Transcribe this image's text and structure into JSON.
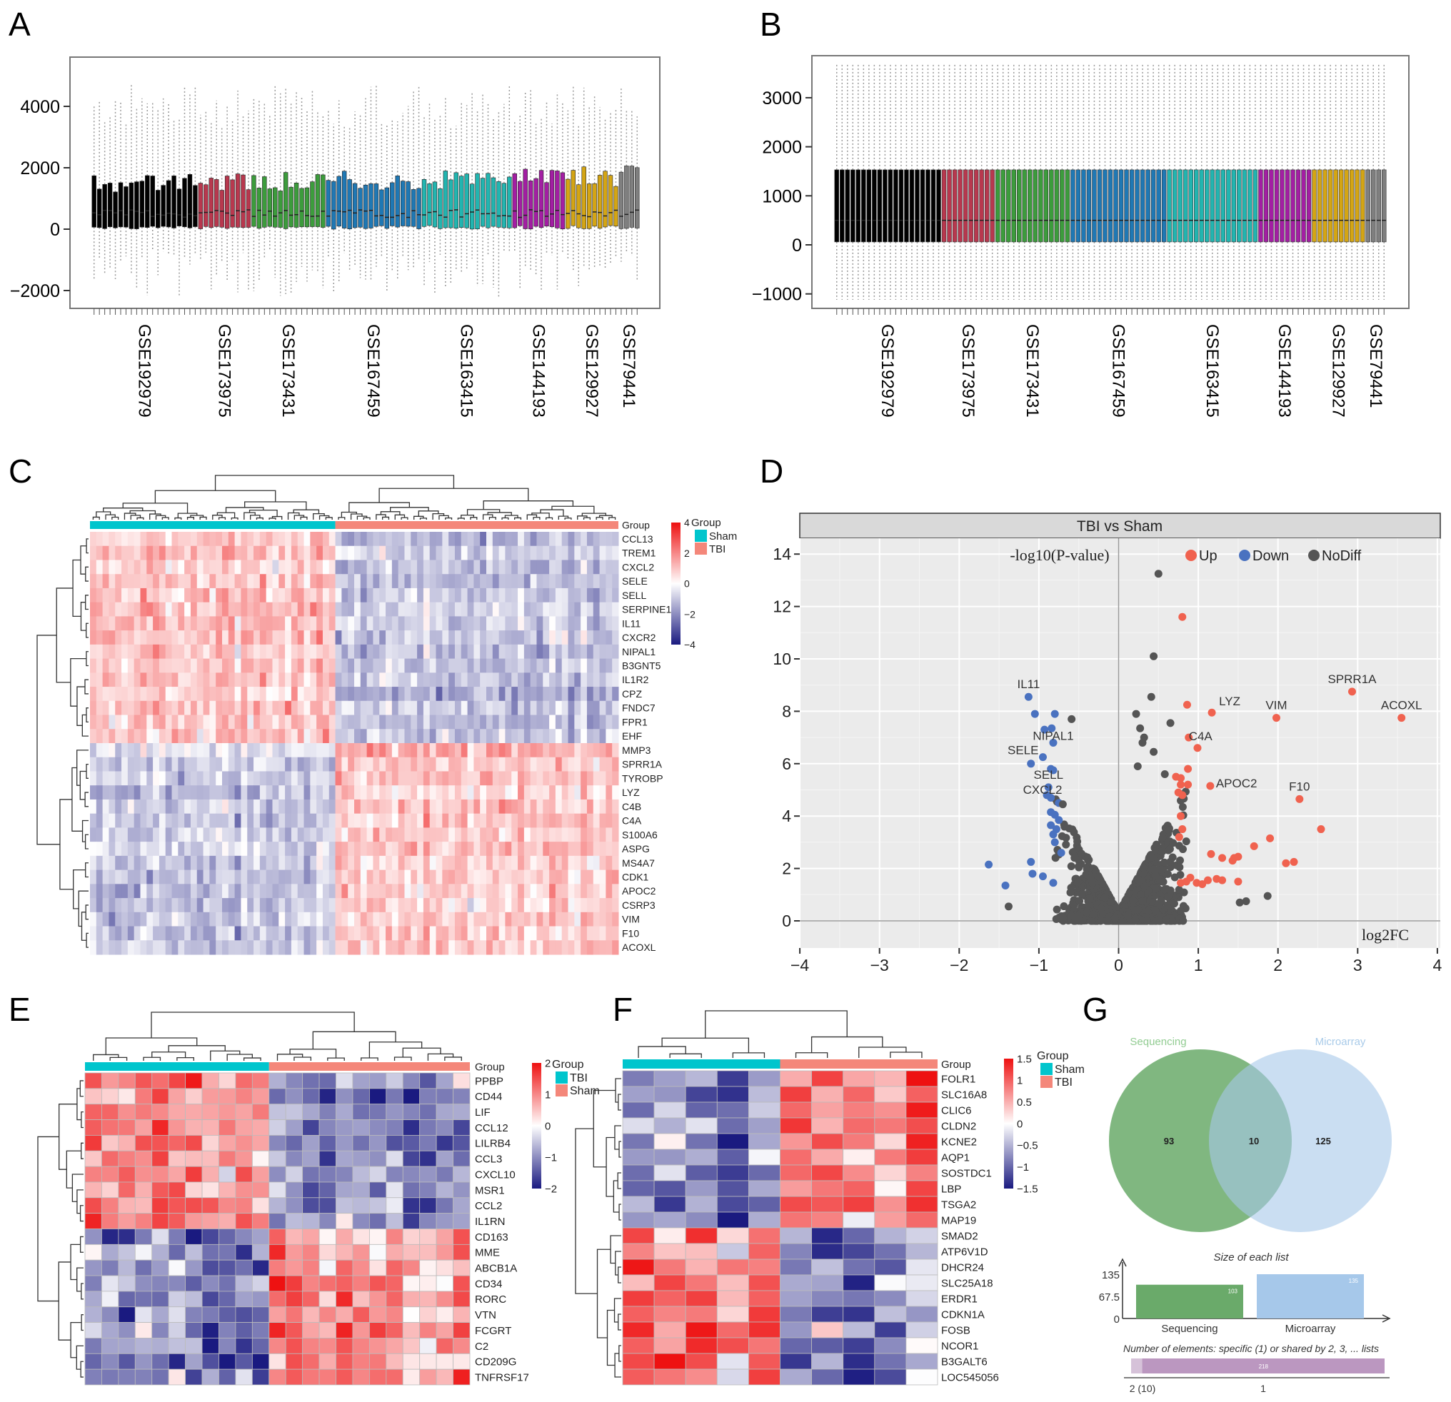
{
  "panel_labels": [
    "A",
    "B",
    "C",
    "D",
    "E",
    "F",
    "G"
  ],
  "chart_data": [
    {
      "panel": "A",
      "type": "box",
      "yticks": [
        4000,
        2000,
        0,
        -2000
      ],
      "ytick_labels": [
        "4000",
        "2000",
        "0",
        "−2000"
      ],
      "ylim": [
        -2400,
        5200
      ],
      "datasets": [
        {
          "name": "GSE192979",
          "color": "#000000",
          "n": 20
        },
        {
          "name": "GSE173975",
          "color": "#b8384e",
          "n": 10
        },
        {
          "name": "GSE173431",
          "color": "#3c9c3c",
          "n": 14
        },
        {
          "name": "GSE167459",
          "color": "#1f78b4",
          "n": 18
        },
        {
          "name": "GSE163415",
          "color": "#22b5b0",
          "n": 17
        },
        {
          "name": "GSE144193",
          "color": "#a31ea3",
          "n": 10
        },
        {
          "name": "GSE129927",
          "color": "#d4a514",
          "n": 10
        },
        {
          "name": "GSE79441",
          "color": "#7f7f7f",
          "n": 4
        }
      ]
    },
    {
      "panel": "B",
      "type": "box",
      "yticks": [
        3000,
        2000,
        1000,
        0,
        -1000
      ],
      "ytick_labels": [
        "3000",
        "2000",
        "1000",
        "0",
        "−1000"
      ],
      "ylim": [
        -1300,
        3900
      ],
      "datasets": [
        {
          "name": "GSE192979",
          "color": "#000000",
          "n": 20
        },
        {
          "name": "GSE173975",
          "color": "#b8384e",
          "n": 10
        },
        {
          "name": "GSE173431",
          "color": "#3c9c3c",
          "n": 14
        },
        {
          "name": "GSE167459",
          "color": "#1f78b4",
          "n": 18
        },
        {
          "name": "GSE163415",
          "color": "#22b5b0",
          "n": 17
        },
        {
          "name": "GSE144193",
          "color": "#a31ea3",
          "n": 10
        },
        {
          "name": "GSE129927",
          "color": "#d4a514",
          "n": 10
        },
        {
          "name": "GSE79441",
          "color": "#7f7f7f",
          "n": 4
        }
      ]
    },
    {
      "panel": "C",
      "type": "heatmap",
      "annotation_label": "Group",
      "legend_title": "Group",
      "groups": [
        {
          "name": "Sham",
          "color": "#00c5cd",
          "n": 39
        },
        {
          "name": "TBI",
          "color": "#f4877a",
          "n": 45
        }
      ],
      "colorbar": {
        "range": [
          -4,
          4
        ],
        "ticks": [
          4,
          2,
          0,
          -2,
          -4
        ],
        "tick_labels": [
          "4",
          "2",
          "0",
          "−2",
          "−4"
        ],
        "low": "#1a1a80",
        "mid": "#ffffff",
        "high": "#ee1111"
      },
      "genes": [
        "CCL13",
        "TREM1",
        "CXCL2",
        "SELE",
        "SELL",
        "SERPINE1",
        "IL11",
        "CXCR2",
        "NIPAL1",
        "B3GNT5",
        "IL1R2",
        "CPZ",
        "FNDC7",
        "FPR1",
        "EHF",
        "MMP3",
        "SPRR1A",
        "TYROBP",
        "LYZ",
        "C4B",
        "C4A",
        "S100A6",
        "ASPG",
        "MS4A7",
        "CDK1",
        "APOC2",
        "CSRP3",
        "VIM",
        "F10",
        "ACOXL"
      ],
      "high_in": [
        "Sham",
        "Sham",
        "Sham",
        "Sham",
        "Sham",
        "Sham",
        "Sham",
        "Sham",
        "Sham",
        "Sham",
        "Sham",
        "Sham",
        "Sham",
        "Sham",
        "Sham",
        "TBI",
        "TBI",
        "TBI",
        "TBI",
        "TBI",
        "TBI",
        "TBI",
        "TBI",
        "TBI",
        "TBI",
        "TBI",
        "TBI",
        "TBI",
        "TBI",
        "TBI"
      ]
    },
    {
      "panel": "D",
      "type": "scatter",
      "title": "TBI vs Sham",
      "xlabel": "log2FC",
      "ylabel": "-log10(P-value)",
      "xlim": [
        -4,
        4
      ],
      "ylim": [
        -1,
        14.8
      ],
      "xticks": [
        -4,
        -3,
        -2,
        -1,
        0,
        1,
        2,
        3,
        4
      ],
      "xtick_labels": [
        "−4",
        "−3",
        "−2",
        "−1",
        "0",
        "1",
        "2",
        "3",
        "4"
      ],
      "yticks": [
        0,
        2,
        4,
        6,
        8,
        10,
        12,
        14
      ],
      "ytick_labels": [
        "0",
        "2",
        "4",
        "6",
        "8",
        "10",
        "12",
        "14"
      ],
      "grid": true,
      "legend_placement": "top",
      "series": [
        {
          "name": "Up",
          "color": "#f0624f",
          "points": [
            [
              0.8,
              11.6
            ],
            [
              0.86,
              8.25
            ],
            [
              1.17,
              7.95
            ],
            [
              1.98,
              7.75
            ],
            [
              2.93,
              8.75
            ],
            [
              3.55,
              7.75
            ],
            [
              0.88,
              7.0
            ],
            [
              0.99,
              6.6
            ],
            [
              0.87,
              5.8
            ],
            [
              0.72,
              5.5
            ],
            [
              0.78,
              5.45
            ],
            [
              0.78,
              5.2
            ],
            [
              0.87,
              5.2
            ],
            [
              1.15,
              5.15
            ],
            [
              0.75,
              4.9
            ],
            [
              0.8,
              4.8
            ],
            [
              2.27,
              4.65
            ],
            [
              0.78,
              4.0
            ],
            [
              0.8,
              3.5
            ],
            [
              0.76,
              3.2
            ],
            [
              2.54,
              3.5
            ],
            [
              1.9,
              3.15
            ],
            [
              1.7,
              2.85
            ],
            [
              1.16,
              2.55
            ],
            [
              1.3,
              2.4
            ],
            [
              1.45,
              2.4
            ],
            [
              1.5,
              2.45
            ],
            [
              1.43,
              2.3
            ],
            [
              2.1,
              2.2
            ],
            [
              2.2,
              2.25
            ],
            [
              0.9,
              1.65
            ],
            [
              0.78,
              1.45
            ],
            [
              0.98,
              1.45
            ],
            [
              1.05,
              1.4
            ],
            [
              1.12,
              1.55
            ],
            [
              1.23,
              1.6
            ],
            [
              1.3,
              1.55
            ],
            [
              1.5,
              1.5
            ],
            [
              0.85,
              1.5
            ]
          ]
        },
        {
          "name": "Down",
          "color": "#4a72c0",
          "points": [
            [
              -1.13,
              8.55
            ],
            [
              -1.05,
              7.9
            ],
            [
              -0.8,
              7.9
            ],
            [
              -0.93,
              7.3
            ],
            [
              -0.84,
              7.35
            ],
            [
              -0.82,
              6.8
            ],
            [
              -0.95,
              6.25
            ],
            [
              -1.1,
              6.0
            ],
            [
              -0.85,
              5.8
            ],
            [
              -0.82,
              5.75
            ],
            [
              -0.88,
              5.1
            ],
            [
              -0.9,
              4.8
            ],
            [
              -0.85,
              4.7
            ],
            [
              -0.75,
              4.5
            ],
            [
              -0.85,
              4.15
            ],
            [
              -0.8,
              4.05
            ],
            [
              -0.75,
              3.85
            ],
            [
              -0.85,
              3.65
            ],
            [
              -0.78,
              3.5
            ],
            [
              -0.82,
              3.3
            ],
            [
              -0.8,
              3.0
            ],
            [
              -0.72,
              2.6
            ],
            [
              -1.1,
              2.25
            ],
            [
              -1.63,
              2.15
            ],
            [
              -1.08,
              1.8
            ],
            [
              -0.95,
              1.7
            ],
            [
              -0.82,
              1.45
            ],
            [
              -1.42,
              1.35
            ]
          ]
        },
        {
          "name": "NoDiff",
          "color": "#555555",
          "points": [
            [
              0.5,
              13.25
            ],
            [
              0.44,
              10.1
            ],
            [
              0.41,
              8.55
            ],
            [
              0.22,
              7.9
            ],
            [
              0.65,
              7.55
            ],
            [
              -0.59,
              7.7
            ],
            [
              0.27,
              7.35
            ],
            [
              0.32,
              7.0
            ],
            [
              0.3,
              6.8
            ],
            [
              0.44,
              6.45
            ],
            [
              0.24,
              5.9
            ],
            [
              0.58,
              5.6
            ],
            [
              1.87,
              0.95
            ],
            [
              1.6,
              0.75
            ],
            [
              1.52,
              0.7
            ],
            [
              -1.38,
              0.55
            ],
            [
              -0.7,
              4.45
            ]
          ]
        }
      ],
      "annotations": [
        {
          "label": "SPRR1A",
          "x": 2.93,
          "y": 8.75
        },
        {
          "label": "ACOXL",
          "x": 3.55,
          "y": 7.75
        },
        {
          "label": "VIM",
          "x": 1.98,
          "y": 7.75
        },
        {
          "label": "LYZ",
          "x": 1.17,
          "y": 7.95
        },
        {
          "label": "C4A",
          "x": 0.88,
          "y": 7.0
        },
        {
          "label": "APOC2",
          "x": 1.15,
          "y": 5.15
        },
        {
          "label": "F10",
          "x": 2.27,
          "y": 4.65
        },
        {
          "label": "IL11",
          "x": -1.13,
          "y": 8.55
        },
        {
          "label": "NIPAL1",
          "x": -0.82,
          "y": 6.8
        },
        {
          "label": "SELE",
          "x": -0.95,
          "y": 6.25
        },
        {
          "label": "SELL",
          "x": -0.88,
          "y": 5.1
        },
        {
          "label": "CXCL2",
          "x": -0.9,
          "y": 4.8
        }
      ]
    },
    {
      "panel": "E",
      "type": "heatmap",
      "annotation_label": "Group",
      "legend_title": "Group",
      "groups": [
        {
          "name": "TBI",
          "color": "#00c5cd",
          "n": 11
        },
        {
          "name": "Sham",
          "color": "#f4877a",
          "n": 12
        }
      ],
      "colorbar": {
        "range": [
          -2,
          2
        ],
        "ticks": [
          2,
          1,
          0,
          -1,
          -2
        ],
        "tick_labels": [
          "2",
          "1",
          "0",
          "−1",
          "−2"
        ],
        "low": "#1a1a80",
        "mid": "#ffffff",
        "high": "#ee1111"
      },
      "genes": [
        "PPBP",
        "CD44",
        "LIF",
        "CCL12",
        "LILRB4",
        "CCL3",
        "CXCL10",
        "MSR1",
        "CCL2",
        "IL1RN",
        "CD163",
        "MME",
        "ABCB1A",
        "CD34",
        "RORC",
        "VTN",
        "FCGRT",
        "C2",
        "CD209G",
        "TNFRSF17"
      ],
      "high_in": [
        "TBI",
        "TBI",
        "TBI",
        "TBI",
        "TBI",
        "TBI",
        "TBI",
        "TBI",
        "TBI",
        "TBI",
        "Sham",
        "Sham",
        "Sham",
        "Sham",
        "Sham",
        "Sham",
        "Sham",
        "Sham",
        "Sham",
        "Sham"
      ]
    },
    {
      "panel": "F",
      "type": "heatmap",
      "annotation_label": "Group",
      "legend_title": "Group",
      "groups": [
        {
          "name": "Sham",
          "color": "#00c5cd",
          "n": 5
        },
        {
          "name": "TBI",
          "color": "#f4877a",
          "n": 5
        }
      ],
      "colorbar": {
        "range": [
          -1.5,
          1.5
        ],
        "ticks": [
          1.5,
          1,
          0.5,
          0,
          -0.5,
          -1,
          -1.5
        ],
        "tick_labels": [
          "1.5",
          "1",
          "0.5",
          "0",
          "−0.5",
          "−1",
          "−1.5"
        ],
        "low": "#1a1a80",
        "mid": "#ffffff",
        "high": "#ee1111"
      },
      "genes": [
        "FOLR1",
        "SLC16A8",
        "CLIC6",
        "CLDN2",
        "KCNE2",
        "AQP1",
        "SOSTDC1",
        "LBP",
        "TSGA2",
        "MAP19",
        "SMAD2",
        "ATP6V1D",
        "DHCR24",
        "SLC25A18",
        "ERDR1",
        "CDKN1A",
        "FOSB",
        "NCOR1",
        "B3GALT6",
        "LOC545056"
      ],
      "high_in": [
        "TBI",
        "TBI",
        "TBI",
        "TBI",
        "TBI",
        "TBI",
        "TBI",
        "TBI",
        "TBI",
        "TBI",
        "Sham",
        "Sham",
        "Sham",
        "Sham",
        "Sham",
        "Sham",
        "Sham",
        "Sham",
        "Sham",
        "Sham"
      ]
    },
    {
      "panel": "G",
      "type": "venn",
      "sets": [
        {
          "name": "Sequencing",
          "color": "#6aaa6a",
          "label_color": "#92cc92",
          "size": 103,
          "size_label": "103"
        },
        {
          "name": "Microarray",
          "color": "#a6c8ea",
          "label_color": "#a9cbe9",
          "size": 135,
          "size_label": "135"
        }
      ],
      "regions": {
        "only_first": "93",
        "shared": "10",
        "only_second": "125"
      },
      "size_chart": {
        "title": "Size of each list",
        "yticks": [
          "135",
          "67.5",
          "0"
        ],
        "ymax": 135
      },
      "elements_chart": {
        "title": "Number of elements: specific (1) or shared by 2, 3, ... lists",
        "shared": 10,
        "specific": 218,
        "specific_label": "218",
        "shared_tick": "2 (10)",
        "specific_tick": "1",
        "color": "#bb97c0"
      }
    }
  ]
}
